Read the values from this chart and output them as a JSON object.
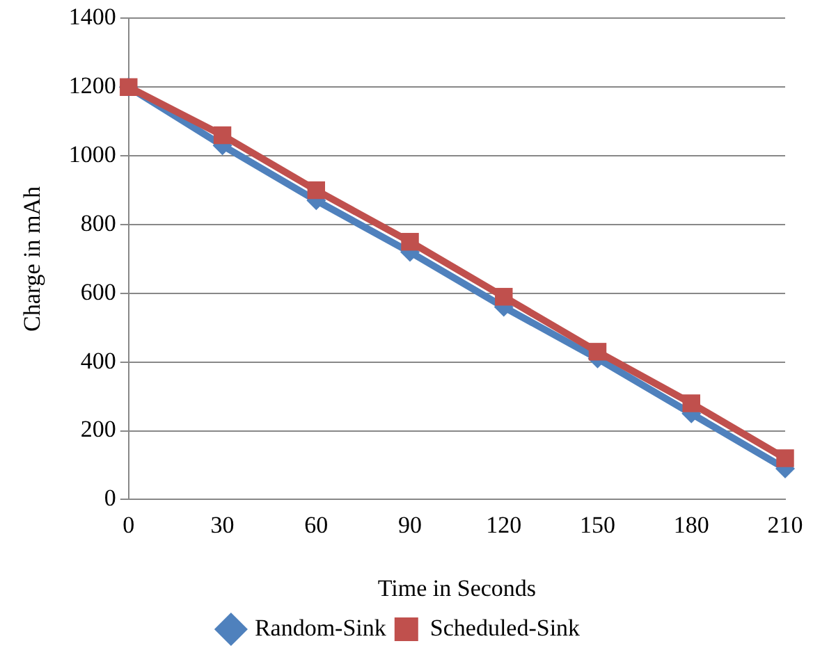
{
  "chart_data": {
    "type": "line",
    "xlabel": "Time in Seconds",
    "ylabel": "Charge in mAh",
    "categories": [
      "0",
      "30",
      "60",
      "90",
      "120",
      "150",
      "180",
      "210"
    ],
    "series": [
      {
        "name": "Random-Sink",
        "color": "#4f81bd",
        "marker": "diamond",
        "values": [
          1200,
          1030,
          870,
          720,
          560,
          410,
          250,
          90
        ]
      },
      {
        "name": "Scheduled-Sink",
        "color": "#c0504d",
        "marker": "square",
        "values": [
          1200,
          1060,
          900,
          750,
          590,
          430,
          280,
          120
        ]
      }
    ],
    "ylim": [
      0,
      1400
    ],
    "yticks": [
      0,
      200,
      400,
      600,
      800,
      1000,
      1200,
      1400
    ],
    "grid": "y",
    "legend": "bottom"
  }
}
